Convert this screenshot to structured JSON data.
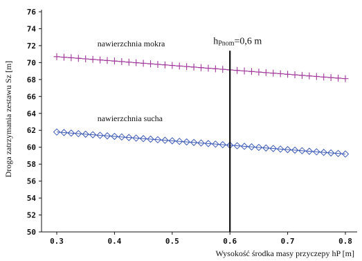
{
  "chart_data": {
    "type": "line",
    "xlabel": "Wysokość środka masy przyczepy hP [m]",
    "ylabel": "Droga zatrzymania zestawu Sz [m]",
    "x_ticks": [
      "0.3",
      "0.4",
      "0.5",
      "0.6",
      "0.7",
      "0.8"
    ],
    "y_ticks": [
      "50",
      "52",
      "54",
      "56",
      "58",
      "60",
      "62",
      "64",
      "66",
      "68",
      "70",
      "72",
      "74",
      "76"
    ],
    "xlim": [
      0.3,
      0.8
    ],
    "ylim": [
      50,
      76
    ],
    "grid": false,
    "x": [
      0.3,
      0.3125,
      0.325,
      0.3375,
      0.35,
      0.3625,
      0.375,
      0.3875,
      0.4,
      0.4125,
      0.425,
      0.4375,
      0.45,
      0.4625,
      0.475,
      0.4875,
      0.5,
      0.5125,
      0.525,
      0.5375,
      0.55,
      0.5625,
      0.575,
      0.5875,
      0.6,
      0.6125,
      0.625,
      0.6375,
      0.65,
      0.6625,
      0.675,
      0.6875,
      0.7,
      0.7125,
      0.725,
      0.7375,
      0.75,
      0.7625,
      0.775,
      0.7875,
      0.8
    ],
    "series": [
      {
        "name": "nawierzchnia mokra",
        "color": "#a0359a",
        "marker": "plus",
        "label_x": 0.38,
        "label_y": 71.9,
        "start": 70.7,
        "end": 68.1
      },
      {
        "name": "nawierzchnia sucha",
        "color": "#3d5bb5",
        "marker": "diamond",
        "label_x": 0.38,
        "label_y": 63.1,
        "start": 61.8,
        "end": 59.2
      }
    ],
    "reference_line": {
      "x": 0.6,
      "y_from": 50,
      "y_to": 71.4,
      "label_main": "h",
      "label_sub": "Pnom",
      "label_rest": "=0,6 m"
    }
  }
}
